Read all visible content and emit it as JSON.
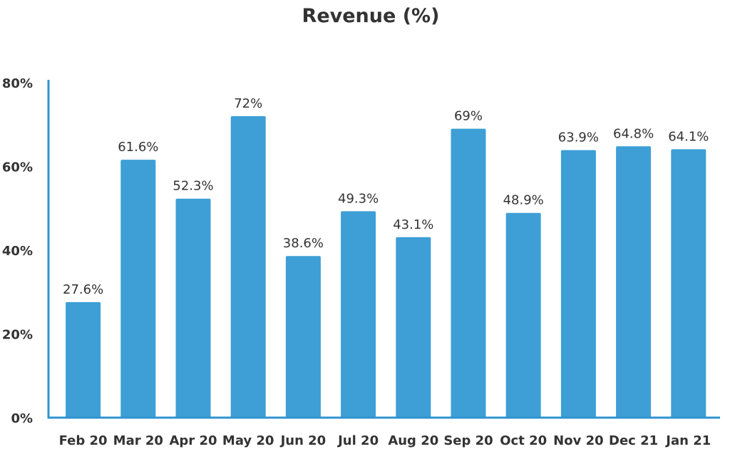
{
  "chart_data": {
    "type": "bar",
    "title": "Revenue (%)",
    "xlabel": "",
    "ylabel": "",
    "categories": [
      "Feb 20",
      "Mar 20",
      "Apr 20",
      "May 20",
      "Jun 20",
      "Jul 20",
      "Aug 20",
      "Sep 20",
      "Oct 20",
      "Nov 20",
      "Dec 21",
      "Jan 21"
    ],
    "values": [
      27.6,
      61.6,
      52.3,
      72,
      38.6,
      49.3,
      43.1,
      69,
      48.9,
      63.9,
      64.8,
      64.1
    ],
    "data_labels": [
      "27.6%",
      "61.6%",
      "52.3%",
      "72%",
      "38.6%",
      "49.3%",
      "43.1%",
      "69%",
      "48.9%",
      "63.9%",
      "64.8%",
      "64.1%"
    ],
    "ylim": [
      0,
      80
    ],
    "yticks": [
      0,
      20,
      40,
      60,
      80
    ],
    "ytick_labels": [
      "0%",
      "20%",
      "40%",
      "60%",
      "80%"
    ],
    "grid": false,
    "legend": "none",
    "colors": {
      "bar": "#3d9fd6",
      "axis": "#2f93cf",
      "text": "#333333"
    }
  }
}
